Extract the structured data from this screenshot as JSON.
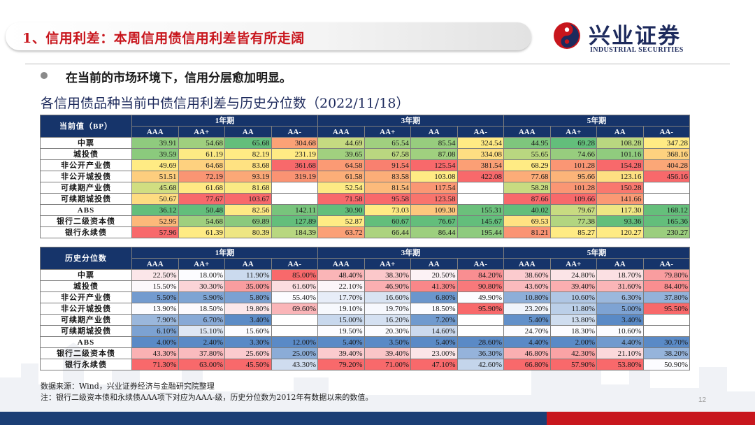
{
  "header": {
    "title": "1、信用利差：本周信用债信用利差皆有所走阔",
    "logo_cn": "兴业证券",
    "logo_en": "INDUSTRIAL SECURITIES"
  },
  "bullet": "在当前的市场环境下，信用分层愈加明显。",
  "table_title": "各信用债品种当前中债信用利差与历史分位数（2022/11/18）",
  "tenors": [
    "1年期",
    "3年期",
    "5年期"
  ],
  "ratings": [
    "AAA",
    "AA+",
    "AA",
    "AA-"
  ],
  "row_labels": [
    "中票",
    "城投债",
    "非公开产业债",
    "非公开城投债",
    "可续期产业债",
    "可续期城投债",
    "ABS",
    "银行二级资本债",
    "银行永续债"
  ],
  "current": {
    "corner": "当前值（BP）",
    "rows": [
      [
        "39.91",
        "54.68",
        "65.68",
        "304.68",
        "44.69",
        "65.54",
        "85.54",
        "324.54",
        "44.95",
        "69.28",
        "108.28",
        "347.28"
      ],
      [
        "39.59",
        "61.19",
        "82.19",
        "231.19",
        "39.65",
        "67.58",
        "87.08",
        "334.08",
        "55.65",
        "74.66",
        "101.16",
        "368.16"
      ],
      [
        "49.69",
        "64.68",
        "83.68",
        "361.68",
        "64.58",
        "91.54",
        "125.54",
        "381.54",
        "68.29",
        "101.28",
        "154.28",
        "404.28"
      ],
      [
        "51.51",
        "72.19",
        "93.19",
        "319.19",
        "61.58",
        "83.58",
        "103.08",
        "422.08",
        "77.68",
        "95.66",
        "123.16",
        "456.16"
      ],
      [
        "45.68",
        "61.68",
        "81.68",
        "",
        "52.54",
        "81.54",
        "117.54",
        "",
        "58.28",
        "101.28",
        "150.28",
        ""
      ],
      [
        "50.67",
        "77.67",
        "103.67",
        "",
        "71.58",
        "95.58",
        "123.58",
        "",
        "87.66",
        "109.66",
        "141.66",
        ""
      ],
      [
        "36.12",
        "50.48",
        "82.56",
        "142.11",
        "30.90",
        "73.03",
        "109.30",
        "155.31",
        "40.02",
        "79.67",
        "117.30",
        "168.12"
      ],
      [
        "52.95",
        "54.68",
        "69.89",
        "127.89",
        "52.87",
        "60.67",
        "76.67",
        "145.67",
        "69.53",
        "77.38",
        "93.36",
        "165.36"
      ],
      [
        "57.96",
        "61.39",
        "80.39",
        "184.39",
        "63.72",
        "66.44",
        "86.44",
        "195.44",
        "81.21",
        "85.27",
        "120.27",
        "230.27"
      ]
    ]
  },
  "percentile": {
    "corner": "历史分位数",
    "rows": [
      [
        "22.50%",
        "18.00%",
        "11.90%",
        "85.00%",
        "48.40%",
        "38.30%",
        "20.50%",
        "84.20%",
        "38.60%",
        "24.80%",
        "18.70%",
        "79.80%"
      ],
      [
        "15.50%",
        "30.30%",
        "35.00%",
        "61.60%",
        "22.10%",
        "46.90%",
        "41.30%",
        "90.80%",
        "43.60%",
        "39.40%",
        "31.60%",
        "84.40%"
      ],
      [
        "5.50%",
        "5.90%",
        "5.80%",
        "55.40%",
        "17.70%",
        "16.60%",
        "6.80%",
        "49.90%",
        "10.80%",
        "10.60%",
        "6.30%",
        "37.80%"
      ],
      [
        "13.90%",
        "18.50%",
        "19.80%",
        "69.60%",
        "19.10%",
        "19.70%",
        "18.50%",
        "95.90%",
        "23.20%",
        "11.80%",
        "5.00%",
        "95.50%"
      ],
      [
        "7.90%",
        "6.70%",
        "3.40%",
        "",
        "15.00%",
        "16.20%",
        "7.20%",
        "",
        "5.40%",
        "13.80%",
        "3.40%",
        ""
      ],
      [
        "6.10%",
        "15.10%",
        "15.60%",
        "",
        "19.50%",
        "20.30%",
        "14.60%",
        "",
        "24.70%",
        "18.30%",
        "10.60%",
        ""
      ],
      [
        "4.00%",
        "2.40%",
        "3.30%",
        "12.00%",
        "5.40%",
        "3.50%",
        "5.40%",
        "28.60%",
        "4.40%",
        "2.00%",
        "4.40%",
        "30.70%"
      ],
      [
        "43.30%",
        "37.80%",
        "25.60%",
        "25.00%",
        "39.40%",
        "39.40%",
        "23.00%",
        "36.30%",
        "46.80%",
        "42.30%",
        "21.10%",
        "38.20%"
      ],
      [
        "71.30%",
        "63.00%",
        "45.50%",
        "43.30%",
        "79.20%",
        "71.00%",
        "47.10%",
        "42.60%",
        "66.80%",
        "57.90%",
        "53.80%",
        "50.90%"
      ]
    ]
  },
  "colors": {
    "brand_red": "#c8161d",
    "brand_navy": "#1b3e75",
    "table_header": "#16346a",
    "scale_low_current": "#63be7b",
    "scale_mid_current": "#ffeb84",
    "scale_high": "#f8696b",
    "scale_low_percentile": "#5a8ac6"
  },
  "source": "数据来源：Wind，兴业证券经济与金融研究院整理",
  "note": "注：银行二级资本债和永续债AAA项下对应为AAA-级，历史分位数为2012年有数据以来的数值。",
  "page_number": "12"
}
